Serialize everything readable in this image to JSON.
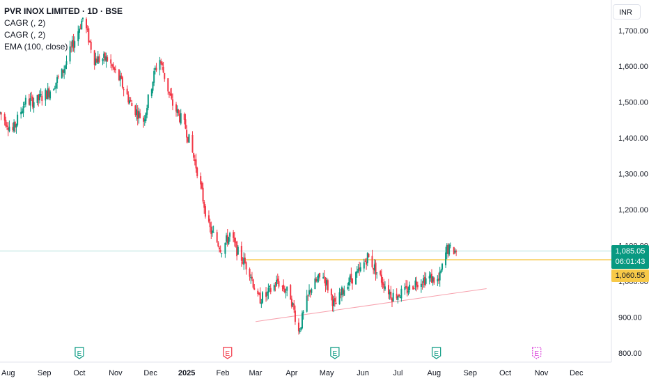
{
  "legend": {
    "title": "PVR INOX LIMITED · 1D · BSE",
    "indicators": [
      "CAGR (, 2)",
      "CAGR (, 2)",
      "EMA (100, close)"
    ]
  },
  "currency": "INR",
  "price_tags": {
    "last_price": "1,085.05",
    "countdown": "06:01:43",
    "level_price": "1,060.55"
  },
  "colors": {
    "up": "#089981",
    "down": "#f23645",
    "level_line": "#f5b300",
    "trend_line": "#f7a1ad",
    "last_price_line": "#b2dfdb",
    "earnings_past_up": "#089981",
    "earnings_past_down": "#f23645",
    "earnings_future": "#d93bd9"
  },
  "chart_data": {
    "type": "candlestick",
    "title": "PVR INOX LIMITED · 1D · BSE",
    "y_axis": {
      "ticks": [
        800,
        900,
        1000,
        1100,
        1200,
        1300,
        1400,
        1500,
        1600,
        1700
      ],
      "tick_labels": [
        "800.00",
        "900.00",
        "1,000.00",
        "1,100.00",
        "1,200.00",
        "1,300.00",
        "1,400.00",
        "1,500.00",
        "1,600.00",
        "1,700.00"
      ],
      "range": [
        775,
        1785
      ]
    },
    "x_axis": {
      "labels": [
        "Aug",
        "Sep",
        "Oct",
        "Nov",
        "Dec",
        "2025",
        "Feb",
        "Mar",
        "Apr",
        "May",
        "Jun",
        "Jul",
        "Aug",
        "Sep",
        "Oct",
        "Nov",
        "Dec"
      ],
      "label_dates": [
        "2024-08-01",
        "2024-09-01",
        "2024-10-01",
        "2024-11-01",
        "2024-12-01",
        "2025-01-01",
        "2025-02-01",
        "2025-03-01",
        "2025-04-01",
        "2025-05-01",
        "2025-06-01",
        "2025-07-01",
        "2025-08-01",
        "2025-09-01",
        "2025-10-01",
        "2025-11-01",
        "2025-12-01"
      ],
      "range": [
        "2024-07-25",
        "2025-12-31"
      ]
    },
    "price_path": [
      [
        "2024-07-25",
        1470
      ],
      [
        "2024-08-05",
        1420
      ],
      [
        "2024-08-15",
        1500
      ],
      [
        "2024-08-26",
        1505
      ],
      [
        "2024-09-05",
        1530
      ],
      [
        "2024-09-16",
        1580
      ],
      [
        "2024-09-26",
        1665
      ],
      [
        "2024-10-04",
        1735
      ],
      [
        "2024-10-14",
        1620
      ],
      [
        "2024-10-25",
        1620
      ],
      [
        "2024-11-05",
        1560
      ],
      [
        "2024-11-15",
        1490
      ],
      [
        "2024-11-25",
        1450
      ],
      [
        "2024-12-05",
        1590
      ],
      [
        "2024-12-09",
        1620
      ],
      [
        "2024-12-19",
        1500
      ],
      [
        "2024-12-31",
        1430
      ],
      [
        "2025-01-10",
        1310
      ],
      [
        "2025-01-20",
        1150
      ],
      [
        "2025-01-31",
        1090
      ],
      [
        "2025-02-07",
        1130
      ],
      [
        "2025-02-14",
        1080
      ],
      [
        "2025-02-24",
        1030
      ],
      [
        "2025-03-03",
        950
      ],
      [
        "2025-03-10",
        960
      ],
      [
        "2025-03-20",
        1000
      ],
      [
        "2025-03-31",
        960
      ],
      [
        "2025-04-07",
        860
      ],
      [
        "2025-04-17",
        980
      ],
      [
        "2025-04-28",
        1020
      ],
      [
        "2025-05-08",
        930
      ],
      [
        "2025-05-19",
        1000
      ],
      [
        "2025-05-29",
        1025
      ],
      [
        "2025-06-05",
        1070
      ],
      [
        "2025-06-16",
        1010
      ],
      [
        "2025-06-26",
        960
      ],
      [
        "2025-07-07",
        970
      ],
      [
        "2025-07-17",
        1000
      ],
      [
        "2025-07-28",
        1010
      ],
      [
        "2025-08-05",
        1000
      ],
      [
        "2025-08-12",
        1090
      ],
      [
        "2025-08-20",
        1085
      ]
    ],
    "last_price": 1085.05,
    "horizontal_level": {
      "value": 1060.55,
      "from": "2025-02-18"
    },
    "trend_line": {
      "from": [
        "2025-03-01",
        888
      ],
      "to": [
        "2025-09-15",
        980
      ]
    },
    "earnings_markers": [
      {
        "date": "2024-10-01",
        "label": "E",
        "kind": "past-up"
      },
      {
        "date": "2025-02-05",
        "label": "E",
        "kind": "past-down"
      },
      {
        "date": "2025-05-08",
        "label": "E",
        "kind": "past-up"
      },
      {
        "date": "2025-08-03",
        "label": "E",
        "kind": "past-up"
      },
      {
        "date": "2025-10-28",
        "label": "E",
        "kind": "future"
      }
    ]
  }
}
